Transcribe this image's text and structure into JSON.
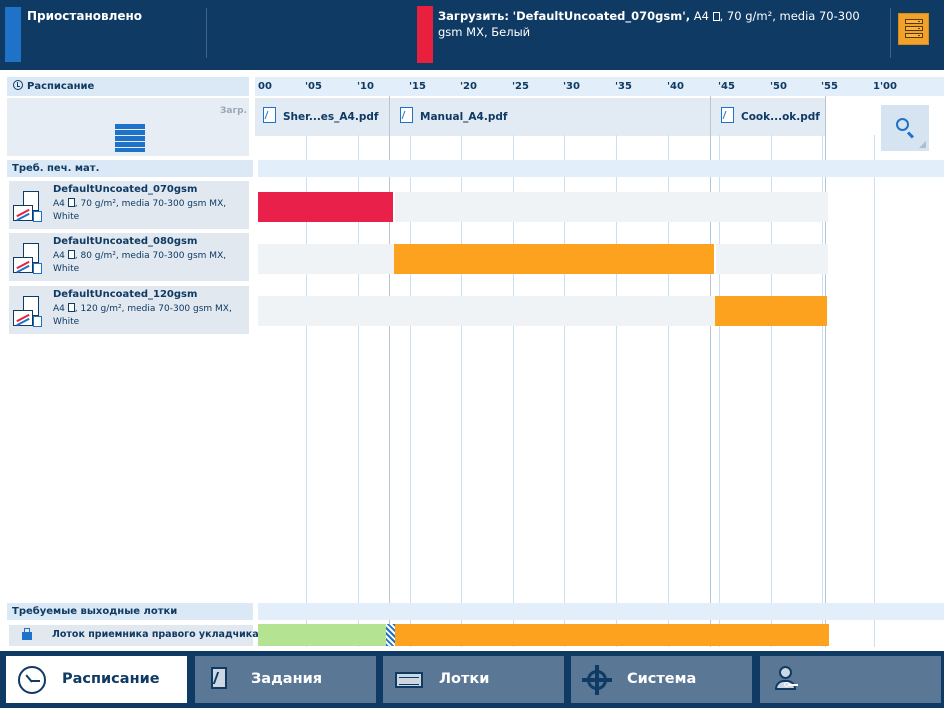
{
  "status": {
    "text": "Приостановлено",
    "accent_color": "#1e73c8"
  },
  "load_message": {
    "prefix": "Загрузить:",
    "media_name": "'DefaultUncoated_070gsm',",
    "size": "A4",
    "details": ", 70 g/m², media 70-300 gsm MX, Белый",
    "accent_color": "#e8203e"
  },
  "schedule": {
    "label": "Расписание",
    "ticks": [
      "00",
      "'05",
      "'10",
      "'15",
      "'20",
      "'25",
      "'30",
      "'35",
      "'40",
      "'45",
      "'50",
      "'55",
      "1'00"
    ]
  },
  "loader": {
    "label": "Загр."
  },
  "jobs": [
    {
      "name": "Sher...es_A4.pdf"
    },
    {
      "name": "Manual_A4.pdf"
    },
    {
      "name": "Cook...ok.pdf"
    }
  ],
  "media_section": {
    "title": "Треб. печ. мат."
  },
  "media": [
    {
      "name": "DefaultUncoated_070gsm",
      "size": "A4",
      "desc": ", 70 g/m², media 70-300 gsm MX,",
      "color": "White",
      "bar_color": "#e8204a"
    },
    {
      "name": "DefaultUncoated_080gsm",
      "size": "A4",
      "desc": ", 80 g/m², media 70-300 gsm MX,",
      "color": "White",
      "bar_color": "#fca21e"
    },
    {
      "name": "DefaultUncoated_120gsm",
      "size": "A4",
      "desc": ", 120 g/m², media 70-300 gsm MX,",
      "color": "White",
      "bar_color": "#fca21e"
    }
  ],
  "output_section": {
    "title": "Требуемые выходные лотки",
    "tray": "Лоток приемника правого укладчика"
  },
  "nav": {
    "schedule": "Расписание",
    "jobs": "Задания",
    "trays": "Лотки",
    "system": "Система"
  }
}
